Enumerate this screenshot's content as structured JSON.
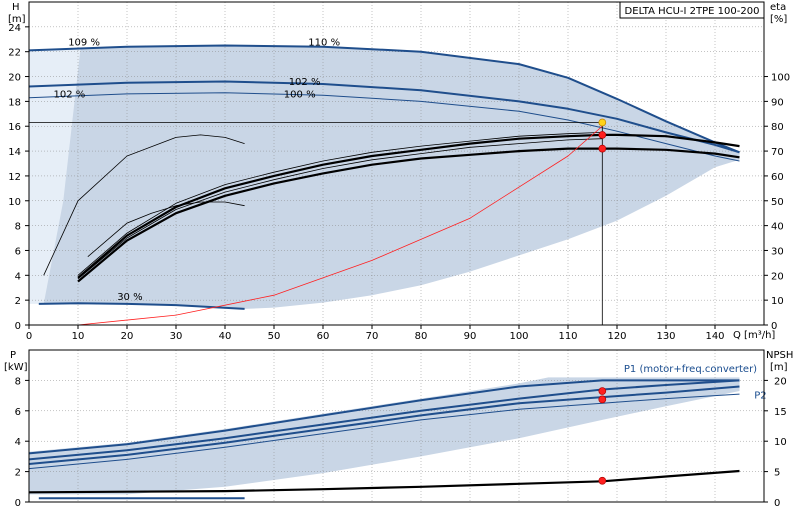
{
  "title": "DELTA HCU-I 2TPE 100-200",
  "colors": {
    "area": "#c9d6e6",
    "area_light": "#e6eef7",
    "curve_blue": "#1f4e8c",
    "curve_black": "#000000",
    "efficiency_red": "#ff2020",
    "axis": "#000000",
    "marker_red": "#ff2020",
    "marker_yellow": "#ffd21a"
  },
  "chart_data": [
    {
      "type": "line",
      "title": "DELTA HCU-I 2TPE 100-200",
      "x": {
        "label": "Q [m³/h]",
        "min": 0,
        "max": 150,
        "ticks": [
          0,
          10,
          20,
          30,
          40,
          50,
          60,
          70,
          80,
          90,
          100,
          110,
          120,
          130,
          140
        ]
      },
      "y_left": {
        "label": "H",
        "unit": "[m]",
        "min": 0,
        "max": 26,
        "ticks": [
          0,
          2,
          4,
          6,
          8,
          10,
          12,
          14,
          16,
          18,
          20,
          22,
          24
        ]
      },
      "y_right": {
        "label": "eta",
        "unit": "[%]",
        "min": 0,
        "max": 130,
        "ticks": [
          0,
          10,
          20,
          30,
          40,
          50,
          60,
          70,
          80,
          90,
          100
        ]
      },
      "annotations": [
        {
          "text": "109 %",
          "x": 8,
          "y": 22.5
        },
        {
          "text": "110 %",
          "x": 57,
          "y": 22.5
        },
        {
          "text": "102 %",
          "x": 53,
          "y": 19.3
        },
        {
          "text": "102 %",
          "x": 5,
          "y": 18.3
        },
        {
          "text": "100 %",
          "x": 52,
          "y": 18.3
        },
        {
          "text": "30 %",
          "x": 18,
          "y": 2.0
        }
      ],
      "series": [
        {
          "style": "blue",
          "x": [
            0,
            20,
            40,
            60,
            80,
            100,
            110,
            120,
            130,
            140,
            145
          ],
          "y": [
            22.1,
            22.4,
            22.5,
            22.4,
            22.0,
            21.0,
            19.9,
            18.2,
            16.4,
            14.7,
            13.9
          ]
        },
        {
          "style": "blue",
          "x": [
            0,
            20,
            40,
            60,
            80,
            100,
            110,
            120,
            130,
            140,
            145
          ],
          "y": [
            19.2,
            19.5,
            19.6,
            19.4,
            18.9,
            18.0,
            17.4,
            16.6,
            15.5,
            14.5,
            13.9
          ]
        },
        {
          "style": "blue-thin",
          "x": [
            0,
            20,
            40,
            60,
            80,
            100,
            110,
            120,
            130,
            140,
            145
          ],
          "y": [
            18.3,
            18.6,
            18.7,
            18.5,
            18.0,
            17.2,
            16.5,
            15.6,
            14.6,
            13.6,
            13.2
          ]
        },
        {
          "style": "blue",
          "x": [
            2,
            10,
            20,
            30,
            44
          ],
          "y": [
            1.7,
            1.75,
            1.7,
            1.6,
            1.3
          ]
        },
        {
          "style": "thin-black",
          "x": [
            3,
            10,
            20,
            30,
            35,
            40,
            44
          ],
          "y": [
            4.0,
            10.0,
            13.6,
            15.1,
            15.3,
            15.1,
            14.6
          ]
        },
        {
          "style": "thick-black",
          "x": [
            10,
            20,
            30,
            40,
            50,
            60,
            70,
            80,
            90,
            100,
            110,
            117,
            120,
            130,
            140,
            145
          ],
          "y": [
            3.5,
            6.8,
            9.0,
            10.4,
            11.4,
            12.2,
            12.9,
            13.4,
            13.7,
            14.0,
            14.2,
            14.2,
            14.2,
            14.1,
            13.8,
            13.5
          ]
        },
        {
          "style": "thick-black",
          "x": [
            10,
            20,
            30,
            40,
            50,
            60,
            70,
            80,
            90,
            100,
            110,
            117,
            120,
            130,
            140,
            145
          ],
          "y": [
            3.8,
            7.2,
            9.5,
            11.0,
            12.0,
            12.9,
            13.6,
            14.1,
            14.6,
            15.0,
            15.2,
            15.3,
            15.3,
            15.2,
            14.7,
            14.4
          ]
        },
        {
          "style": "thin-black",
          "x": [
            10,
            20,
            30,
            40,
            50,
            60,
            70,
            80,
            90,
            100,
            110,
            117
          ],
          "y": [
            3.7,
            7.0,
            9.3,
            10.7,
            11.7,
            12.6,
            13.3,
            13.8,
            14.3,
            14.6,
            14.9,
            15.0
          ]
        },
        {
          "style": "thin-black",
          "x": [
            10,
            20,
            30,
            40,
            50,
            60,
            70,
            80,
            90,
            100,
            110,
            117
          ],
          "y": [
            4.0,
            7.4,
            9.8,
            11.3,
            12.3,
            13.2,
            13.9,
            14.4,
            14.8,
            15.2,
            15.4,
            15.5
          ]
        },
        {
          "style": "thin-black",
          "x": [
            12,
            20,
            25,
            30,
            35,
            40,
            44
          ],
          "y": [
            5.5,
            8.2,
            9.0,
            9.6,
            9.9,
            9.9,
            9.6
          ]
        },
        {
          "style": "red",
          "axis": "right",
          "x": [
            10,
            30,
            50,
            70,
            90,
            110,
            117
          ],
          "y": [
            0,
            4,
            12,
            26,
            43,
            68,
            80
          ]
        }
      ],
      "operating_point": {
        "q": 117,
        "h": 16.3
      },
      "points": [
        {
          "x": 117,
          "y": 16.3,
          "color": "yellow"
        },
        {
          "x": 117,
          "y": 15.3,
          "color": "red"
        },
        {
          "x": 117,
          "y": 14.2,
          "color": "red"
        }
      ]
    },
    {
      "type": "line",
      "x": {
        "min": 0,
        "max": 150
      },
      "y_left": {
        "label": "P",
        "unit": "[kW]",
        "min": 0,
        "max": 10,
        "ticks": [
          0,
          2,
          4,
          6,
          8
        ]
      },
      "y_right": {
        "label": "NPSH",
        "unit": "[m]",
        "min": 0,
        "max": 25,
        "ticks": [
          0,
          5,
          10,
          15,
          20
        ]
      },
      "labels": [
        {
          "text": "P1 (motor+freq.converter)",
          "x": 135,
          "y": 8.55
        },
        {
          "text": "P2",
          "x": 148,
          "y": 6.8
        }
      ],
      "series": [
        {
          "style": "blue",
          "x": [
            0,
            20,
            40,
            60,
            80,
            100,
            117,
            130,
            145
          ],
          "y": [
            3.2,
            3.8,
            4.7,
            5.7,
            6.7,
            7.6,
            8.0,
            8.0,
            8.0
          ]
        },
        {
          "style": "blue",
          "x": [
            0,
            20,
            40,
            60,
            80,
            100,
            117,
            130,
            145
          ],
          "y": [
            2.8,
            3.4,
            4.2,
            5.1,
            6.0,
            6.8,
            7.4,
            7.7,
            8.0
          ]
        },
        {
          "style": "blue",
          "x": [
            0,
            20,
            40,
            60,
            80,
            100,
            117,
            130,
            145
          ],
          "y": [
            2.5,
            3.1,
            3.9,
            4.8,
            5.7,
            6.5,
            6.9,
            7.2,
            7.6
          ]
        },
        {
          "style": "blue-thin",
          "x": [
            0,
            20,
            40,
            60,
            80,
            100,
            117,
            130,
            145
          ],
          "y": [
            2.2,
            2.8,
            3.6,
            4.5,
            5.4,
            6.1,
            6.5,
            6.8,
            7.1
          ]
        },
        {
          "style": "blue",
          "x": [
            2,
            20,
            44
          ],
          "y": [
            0.25,
            0.25,
            0.25
          ]
        },
        {
          "style": "thick-black",
          "axis": "right",
          "x": [
            0,
            20,
            40,
            60,
            80,
            100,
            117,
            130,
            145
          ],
          "y": [
            1.6,
            1.7,
            1.8,
            2.1,
            2.5,
            3.0,
            3.4,
            4.2,
            5.1
          ]
        }
      ],
      "points": [
        {
          "x": 117,
          "y": 7.3,
          "color": "red"
        },
        {
          "x": 117,
          "y": 6.75,
          "color": "red"
        },
        {
          "x": 117,
          "y": 1.4,
          "color": "red"
        }
      ]
    }
  ]
}
